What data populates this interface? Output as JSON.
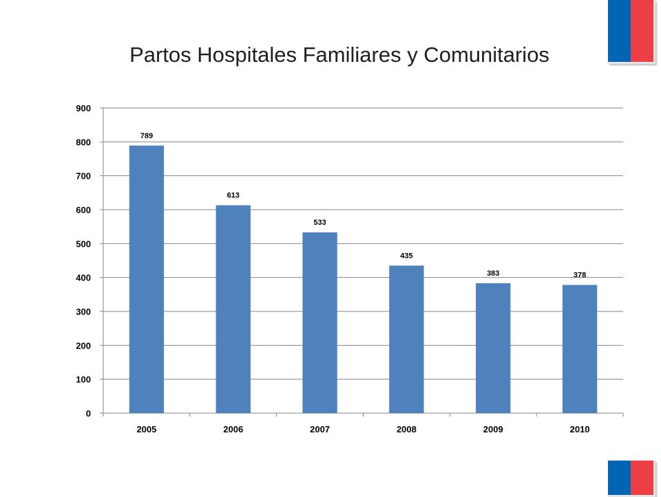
{
  "slide": {
    "title": "Partos Hospitales Familiares y Comunitarios",
    "flag_colors": {
      "blue": "#0066b3",
      "red": "#ee3f46"
    }
  },
  "chart_data": {
    "type": "bar",
    "title": "Partos Hospitales Familiares y Comunitarios",
    "categories": [
      "2005",
      "2006",
      "2007",
      "2008",
      "2009",
      "2010"
    ],
    "values": [
      789,
      613,
      533,
      435,
      383,
      378
    ],
    "data_labels": [
      "789",
      "613",
      "533",
      "435",
      "383",
      "378"
    ],
    "xlabel": "",
    "ylabel": "",
    "ylim": [
      0,
      900
    ],
    "yticks": [
      "0",
      "100",
      "200",
      "300",
      "400",
      "500",
      "600",
      "700",
      "800",
      "900"
    ],
    "grid": true,
    "legend": "none",
    "bar_color": "#4f81bd",
    "gridline_color": "#868686"
  }
}
